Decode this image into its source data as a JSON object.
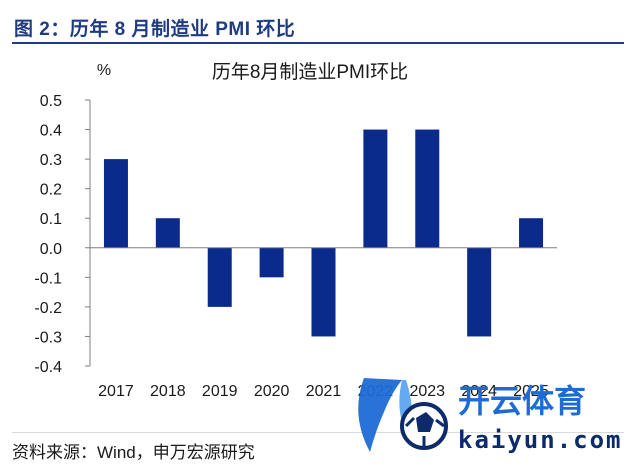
{
  "figure": {
    "title": "图 2：历年 8 月制造业 PMI 环比",
    "source": "资料来源：Wind，申万宏源研究"
  },
  "watermark": {
    "text_cn": "开云体育",
    "text_en": "kaiyun.com",
    "color_primary": "#1e6bd6",
    "color_dark": "#0d2b6b"
  },
  "chart_data": {
    "type": "bar",
    "title": "历年8月制造业PMI环比",
    "unit_label": "%",
    "categories": [
      "2017",
      "2018",
      "2019",
      "2020",
      "2021",
      "2022",
      "2023",
      "2024",
      "2025"
    ],
    "values": [
      0.3,
      0.1,
      -0.2,
      -0.1,
      -0.3,
      0.4,
      0.4,
      -0.3,
      0.1
    ],
    "ylim": [
      -0.4,
      0.5
    ],
    "yticks": [
      "0.5",
      "0.4",
      "0.3",
      "0.2",
      "0.1",
      "0.0",
      "-0.1",
      "-0.2",
      "-0.3",
      "-0.4"
    ],
    "bar_color": "#0a2a8c",
    "grid": false,
    "legend": "none"
  }
}
